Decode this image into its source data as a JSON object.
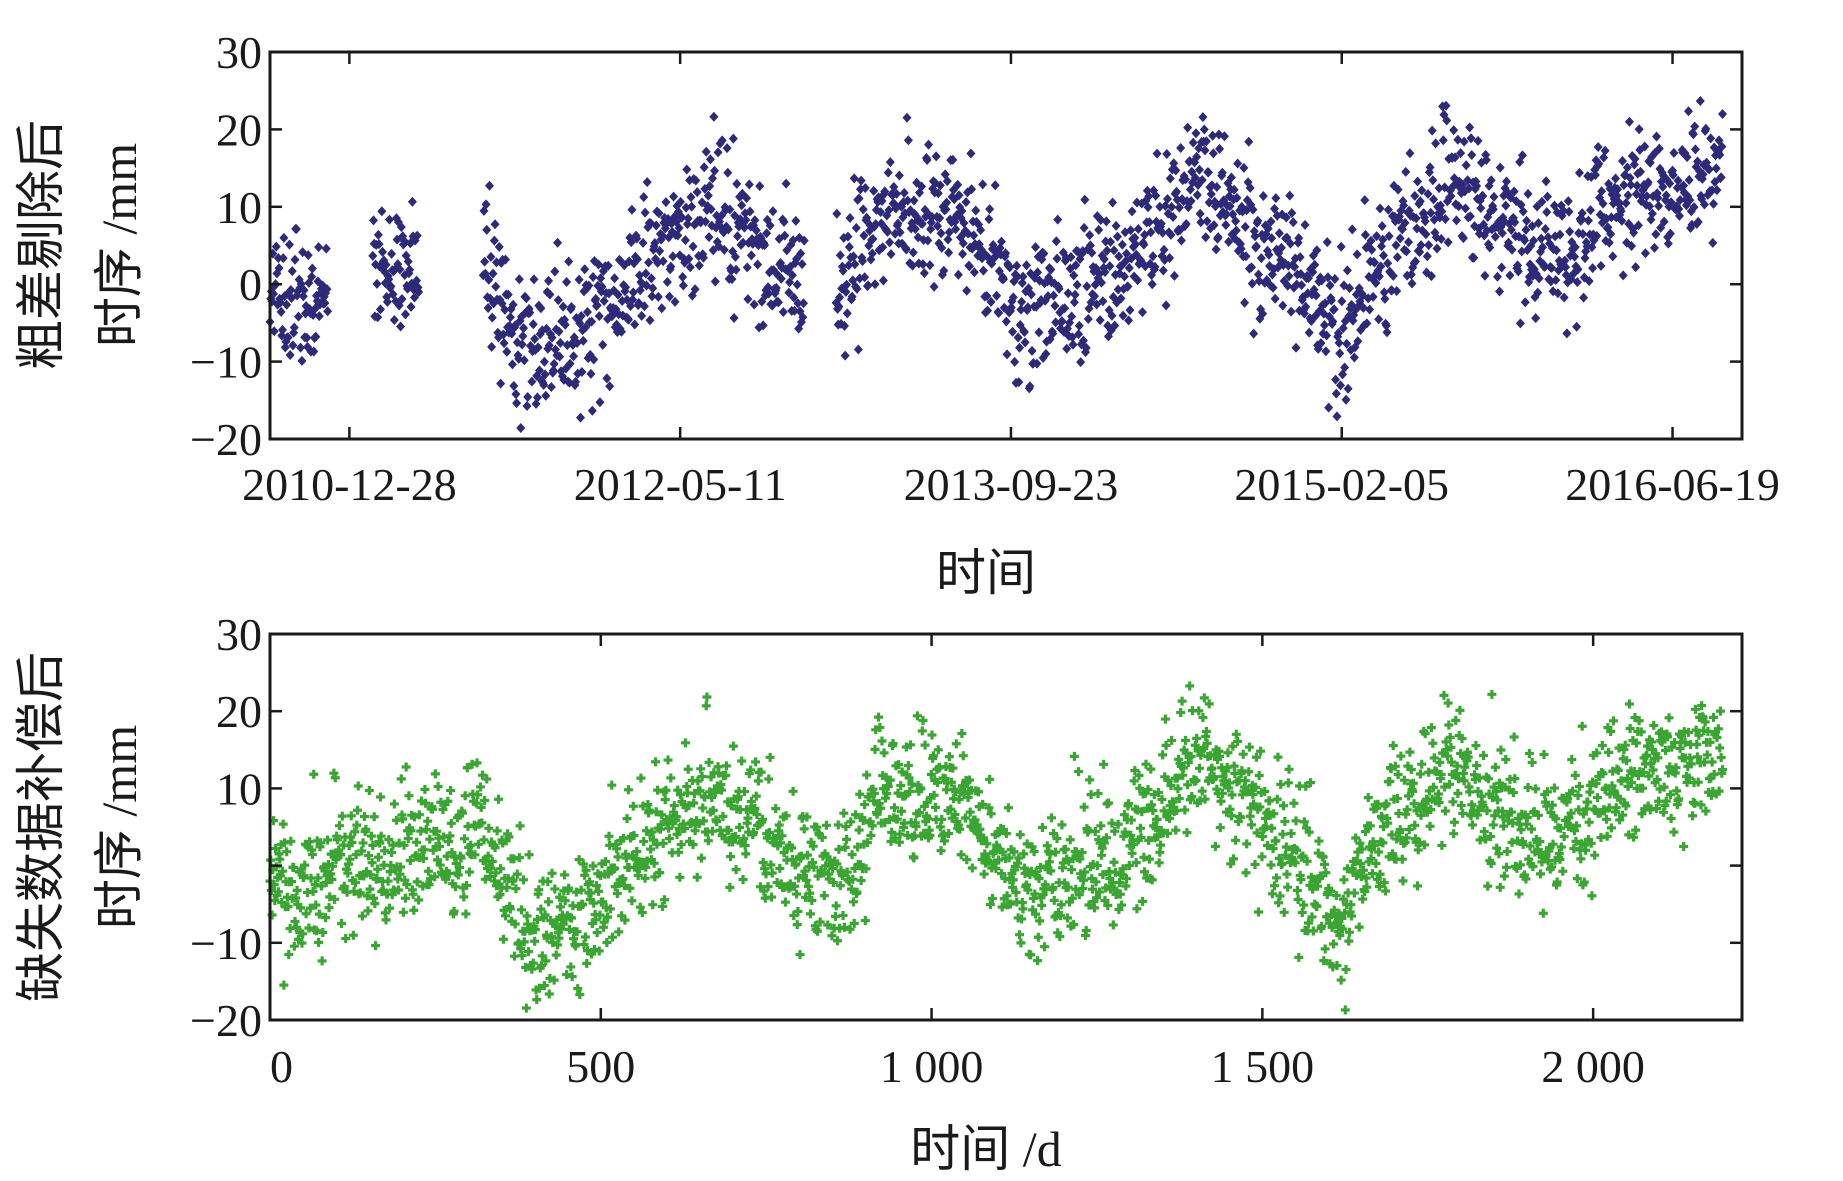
{
  "chart_data": [
    {
      "type": "scatter",
      "title": "",
      "xlabel": "时间",
      "ylabel_line1": "粗差剔除后",
      "ylabel_line2": "时序 /mm",
      "ylim": [
        -20,
        30
      ],
      "yticks": [
        -20,
        -10,
        0,
        10,
        20,
        30
      ],
      "yticklabels": [
        "−20",
        "−10",
        "0",
        "10",
        "20",
        "30"
      ],
      "xlim_days": [
        0,
        2225
      ],
      "xticks_days": [
        120,
        620,
        1120,
        1620,
        2120
      ],
      "xticklabels": [
        "2010-12-28",
        "2012-05-11",
        "2013-09-23",
        "2015-02-05",
        "2016-06-19"
      ],
      "color": "#2e2a7a",
      "marker": "diamond",
      "gaps_days": [
        [
          88,
          155
        ],
        [
          225,
          322
        ],
        [
          808,
          855
        ]
      ],
      "series": [
        {
          "name": "",
          "trend_points": [
            [
              0,
              0
            ],
            [
              35,
              -4
            ],
            [
              88,
              -1
            ],
            [
              155,
              1
            ],
            [
              225,
              2
            ],
            [
              322,
              4
            ],
            [
              390,
              -9
            ],
            [
              470,
              -7
            ],
            [
              560,
              2
            ],
            [
              660,
              10
            ],
            [
              808,
              -1
            ],
            [
              855,
              -3
            ],
            [
              915,
              8
            ],
            [
              1040,
              9
            ],
            [
              1145,
              -4
            ],
            [
              1330,
              5
            ],
            [
              1400,
              14
            ],
            [
              1540,
              2
            ],
            [
              1620,
              -7
            ],
            [
              1660,
              2
            ],
            [
              1790,
              13
            ],
            [
              1860,
              7
            ],
            [
              1930,
              3
            ],
            [
              1960,
              4
            ],
            [
              2000,
              8
            ],
            [
              2060,
              12
            ],
            [
              2140,
              13
            ],
            [
              2196,
              16
            ]
          ],
          "noise_sd_mm": 4.5
        }
      ]
    },
    {
      "type": "scatter",
      "title": "",
      "xlabel": "时间 /d",
      "ylabel_line1": "缺失数据补偿后",
      "ylabel_line2": "时序 /mm",
      "ylim": [
        -20,
        30
      ],
      "yticks": [
        -20,
        -10,
        0,
        10,
        20,
        30
      ],
      "yticklabels": [
        "−20",
        "−10",
        "",
        "10",
        "20",
        "30"
      ],
      "xlim_days": [
        0,
        2225
      ],
      "xticks_days": [
        0,
        500,
        1000,
        1500,
        2000
      ],
      "xticklabels": [
        "0",
        "500",
        "1 000",
        "1 500",
        "2 000"
      ],
      "color": "#3aa632",
      "marker": "plus",
      "gaps_days": [],
      "series": [
        {
          "name": "",
          "trend_points": [
            [
              0,
              0
            ],
            [
              35,
              -4
            ],
            [
              88,
              -1
            ],
            [
              155,
              1
            ],
            [
              225,
              2
            ],
            [
              322,
              4
            ],
            [
              390,
              -9
            ],
            [
              470,
              -7
            ],
            [
              560,
              2
            ],
            [
              660,
              10
            ],
            [
              808,
              -1
            ],
            [
              855,
              -3
            ],
            [
              915,
              8
            ],
            [
              1040,
              9
            ],
            [
              1145,
              -4
            ],
            [
              1330,
              5
            ],
            [
              1400,
              14
            ],
            [
              1540,
              2
            ],
            [
              1620,
              -7
            ],
            [
              1660,
              2
            ],
            [
              1790,
              13
            ],
            [
              1860,
              7
            ],
            [
              1930,
              3
            ],
            [
              1960,
              4
            ],
            [
              2000,
              8
            ],
            [
              2060,
              12
            ],
            [
              2140,
              13
            ],
            [
              2196,
              16
            ]
          ],
          "noise_sd_mm": 4.5
        }
      ]
    }
  ]
}
